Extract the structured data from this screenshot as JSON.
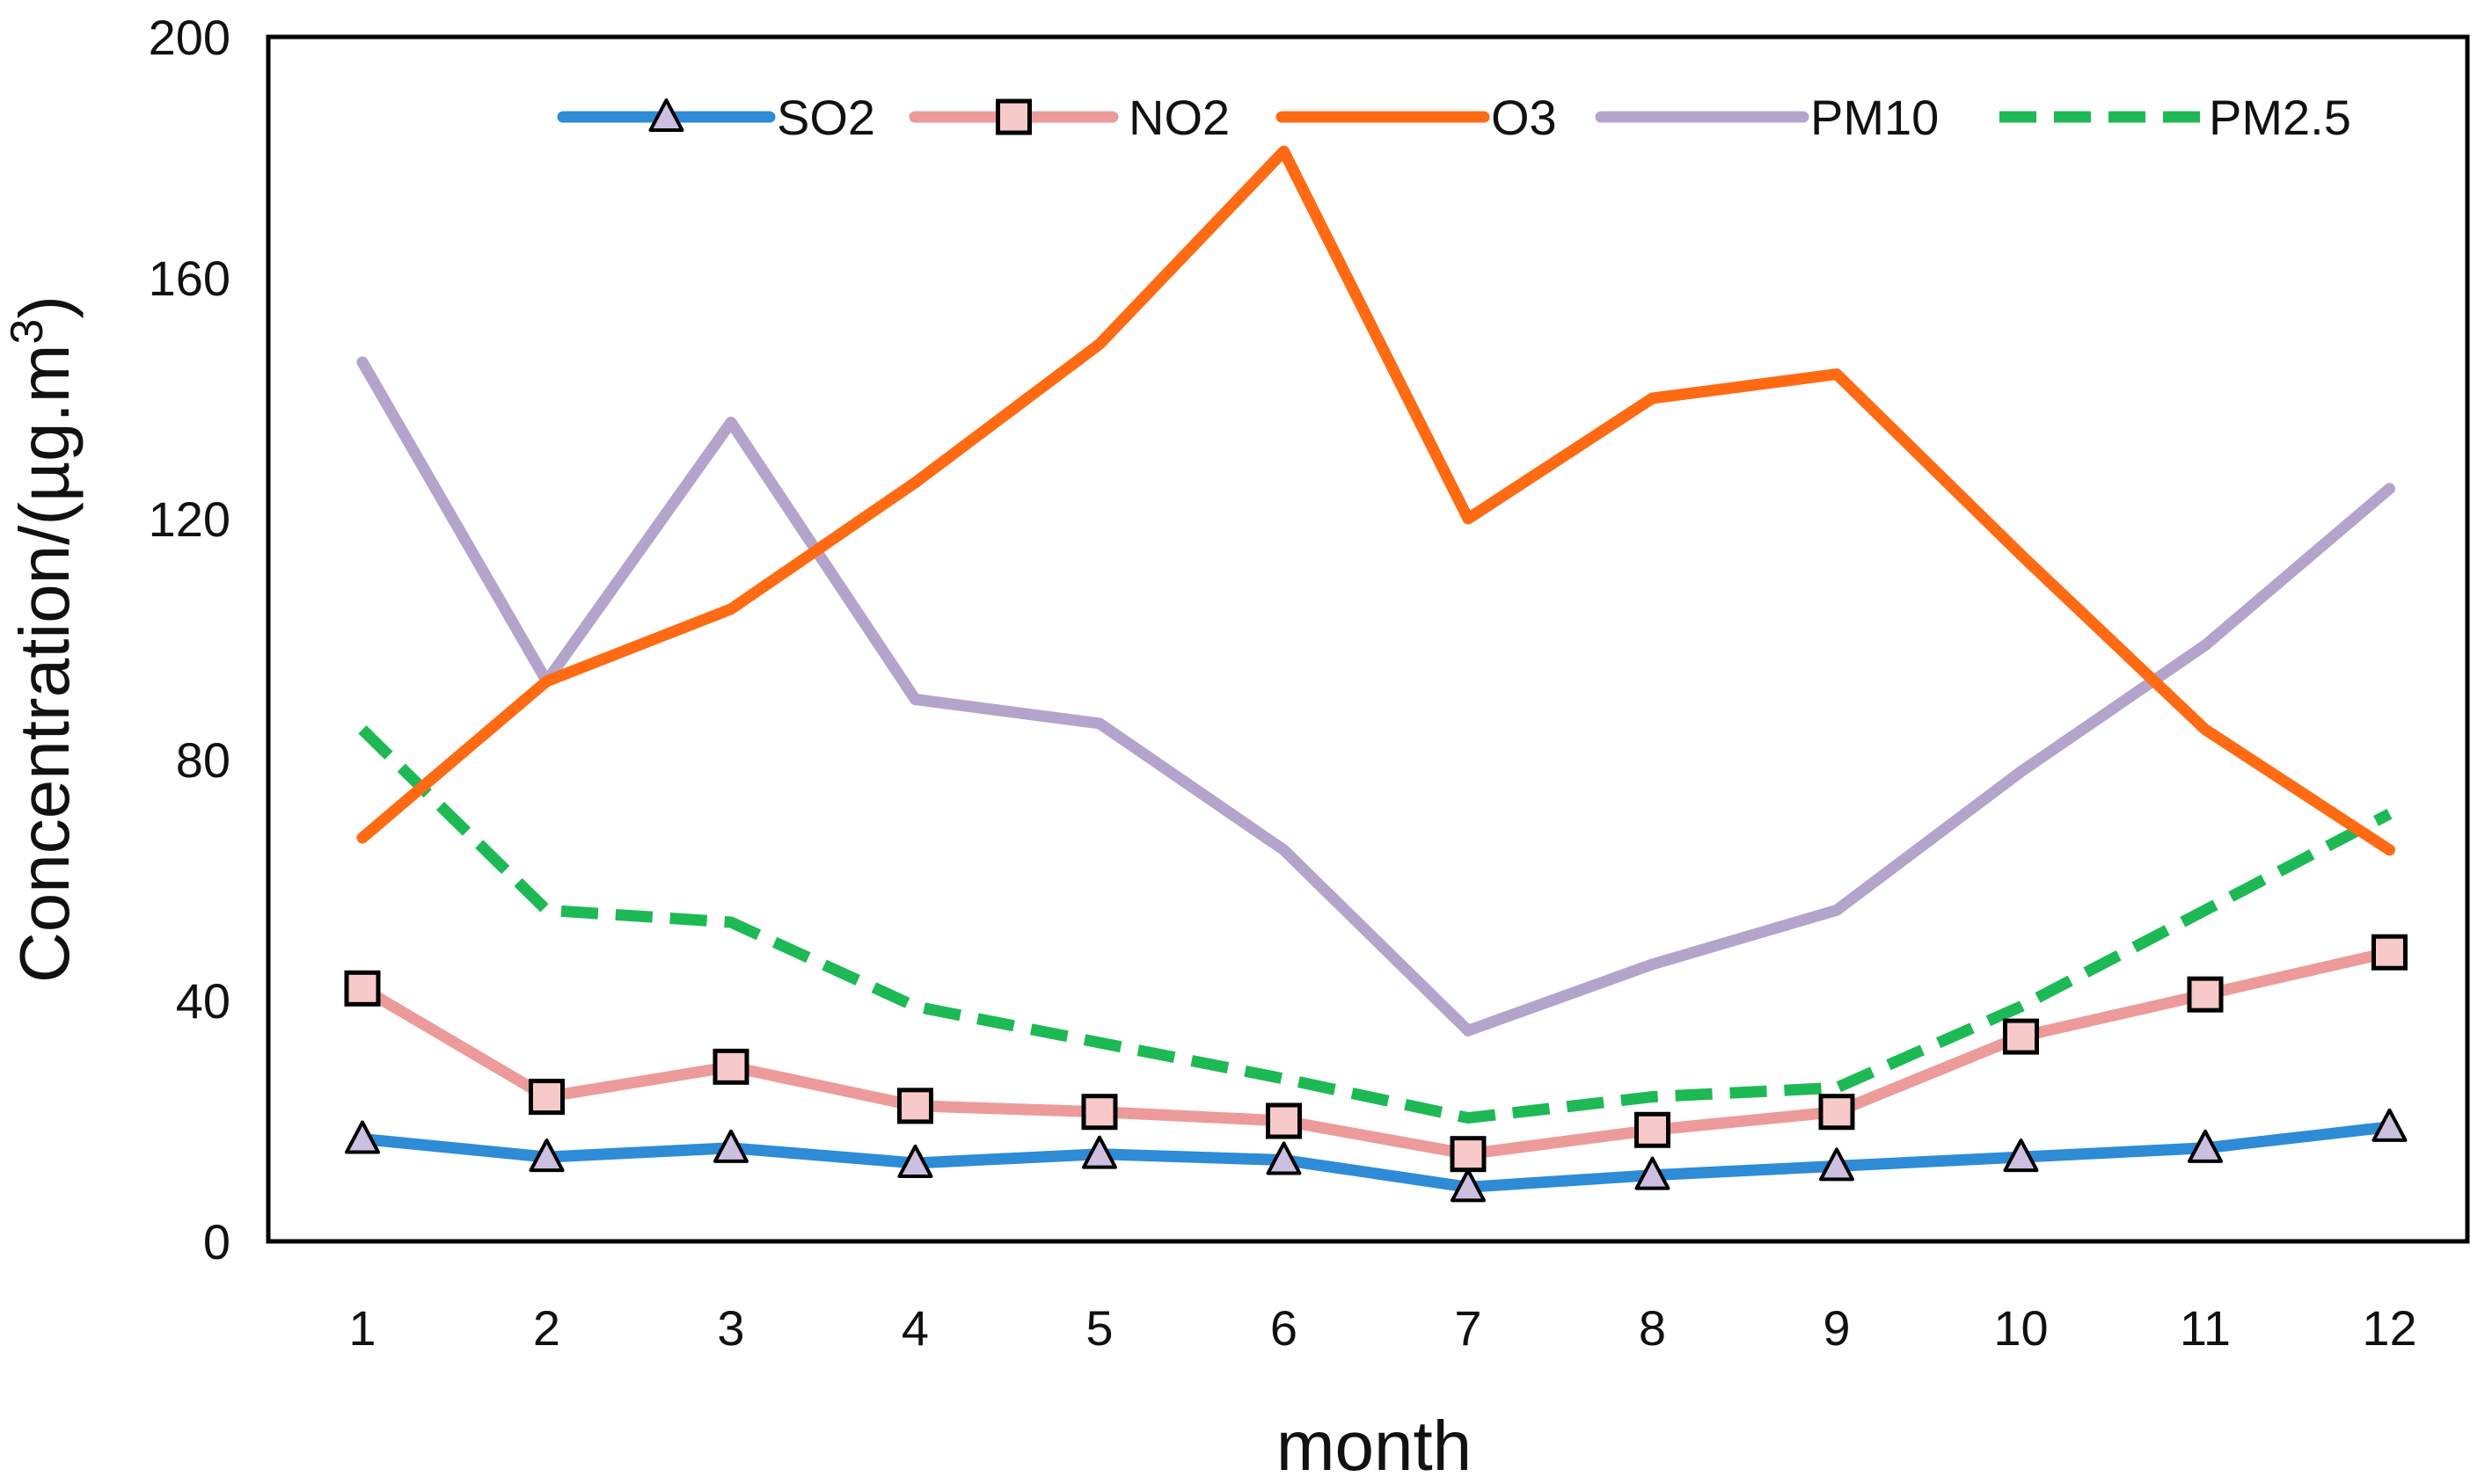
{
  "chart_data": {
    "type": "line",
    "title": "",
    "xlabel": "month",
    "ylabel_main": "Concentration/(µg.m",
    "ylabel_sup": "3",
    "ylabel_close": ")",
    "ylabel": "Concentration/(µg.m3)",
    "ylim": [
      0,
      200
    ],
    "yticks": [
      "0",
      "40",
      "80",
      "120",
      "160",
      "200"
    ],
    "categories": [
      "1",
      "2",
      "3",
      "4",
      "5",
      "6",
      "7",
      "8",
      "9",
      "10",
      "11",
      "12"
    ],
    "legend_position": "top",
    "grid": false,
    "series": [
      {
        "name": "SO2",
        "color": "#2E8BD6",
        "dash": false,
        "marker": "triangle",
        "marker_fill": "#CDBFE0",
        "values": [
          17,
          14,
          15.5,
          13,
          14.5,
          13.5,
          9,
          11,
          12.5,
          14,
          15.5,
          19
        ]
      },
      {
        "name": "NO2",
        "color": "#ED9A9A",
        "dash": false,
        "marker": "square",
        "marker_fill": "#F7C9C9",
        "values": [
          42,
          24,
          29,
          22.5,
          21.5,
          20,
          14.5,
          18.5,
          21.5,
          34,
          41,
          48
        ]
      },
      {
        "name": "O3",
        "color": "#FF6A13",
        "dash": false,
        "marker": "none",
        "marker_fill": "",
        "values": [
          67,
          93,
          105,
          126,
          149,
          181,
          120,
          140,
          144,
          114,
          85,
          65
        ]
      },
      {
        "name": "PM10",
        "color": "#B4A4CC",
        "dash": false,
        "marker": "none",
        "marker_fill": "",
        "values": [
          146,
          93,
          136,
          90,
          86,
          65,
          35,
          46,
          55,
          78,
          99,
          125
        ]
      },
      {
        "name": "PM2.5",
        "color": "#1DB954",
        "dash": true,
        "marker": "none",
        "marker_fill": "",
        "values": [
          85,
          55,
          53,
          39,
          33,
          27,
          20.5,
          24,
          25.5,
          39,
          55,
          71
        ]
      }
    ]
  }
}
